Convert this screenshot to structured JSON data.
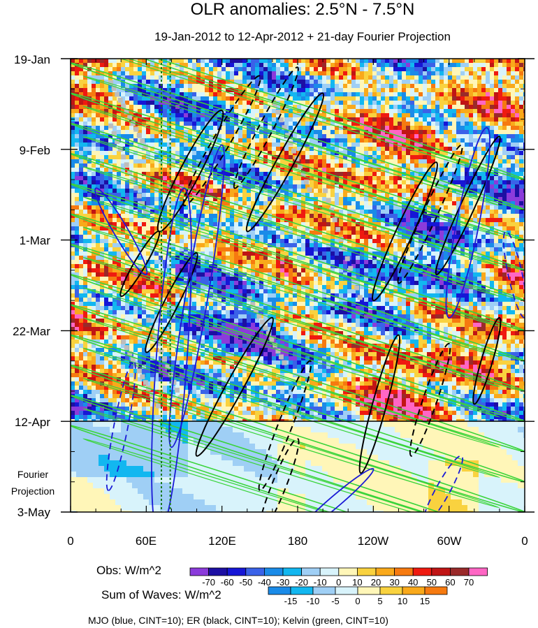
{
  "chart_data": {
    "type": "heatmap",
    "title": "OLR anomalies: 2.5°N - 7.5°N",
    "subtitle": "19-Jan-2012 to 12-Apr-2012 + 21-day Fourier Projection",
    "x_ticks": [
      "0",
      "60E",
      "120E",
      "180",
      "120W",
      "60W",
      "0"
    ],
    "x_values_deg": [
      0,
      60,
      120,
      180,
      240,
      300,
      360
    ],
    "y_ticks": [
      "19-Jan",
      "9-Feb",
      "1-Mar",
      "22-Mar",
      "12-Apr",
      "3-May"
    ],
    "y_dates": [
      "2012-01-19",
      "2012-02-09",
      "2012-03-01",
      "2012-03-22",
      "2012-04-12",
      "2012-05-03"
    ],
    "projection_label": [
      "Fourier",
      "Projection"
    ],
    "projection_start": "2012-04-12",
    "reference_lines_deg": [
      72,
      79
    ],
    "obs_legend": {
      "label": "Obs: W/m^2",
      "levels": [
        "-70",
        "-60",
        "-50",
        "-40",
        "-30",
        "-20",
        "-10",
        "0",
        "10",
        "20",
        "30",
        "40",
        "50",
        "60",
        "70"
      ],
      "colors": [
        "#8b3bdb",
        "#1d0fa3",
        "#1616d6",
        "#3a62e8",
        "#1a8be8",
        "#12b7f0",
        "#9fcff5",
        "#d8f3fb",
        "#fff6b8",
        "#f9d23f",
        "#f9a91b",
        "#f67a10",
        "#ef1a10",
        "#c01515",
        "#9a2a2a",
        "#ff66c4"
      ]
    },
    "waves_legend": {
      "label": "Sum of Waves: W/m^2",
      "levels": [
        "-15",
        "-10",
        "-5",
        "0",
        "5",
        "10",
        "15"
      ],
      "colors": [
        "#1a8be8",
        "#12b7f0",
        "#9fcff5",
        "#d8f3fb",
        "#fff6b8",
        "#f9d23f",
        "#f9a91b",
        "#f67a10"
      ]
    },
    "footer": "MJO (blue, CINT=10); ER (black, CINT=10); Kelvin (green, CINT=10)",
    "series_colors": {
      "mjo": "#1a1ad6",
      "er": "#000000",
      "kelvin": "#3ad43a",
      "ref": "#1a7a1a"
    }
  }
}
